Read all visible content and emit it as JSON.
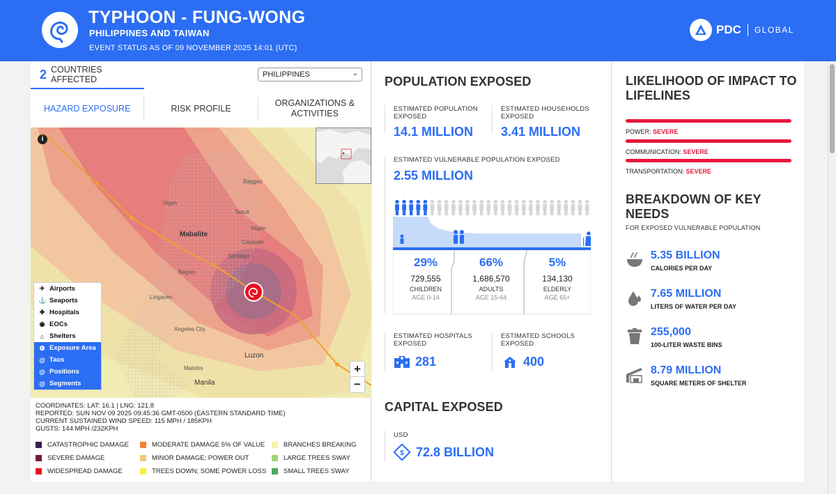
{
  "header": {
    "title": "TYPHOON - FUNG-WONG",
    "subtitle": "PHILIPPINES AND TAIWAN",
    "status": "EVENT STATUS AS OF 09 NOVEMBER 2025 14:01 (UTC)",
    "brand": "PDC",
    "brand_sub": "GLOBAL"
  },
  "left": {
    "countries_count": "2",
    "countries_label": "COUNTRIES AFFECTED",
    "country_select": "PHILIPPINES",
    "tabs": [
      "HAZARD EXPOSURE",
      "RISK PROFILE",
      "ORGANIZATIONS & ACTIVITIES"
    ],
    "map": {
      "place_labels": [
        "Baggao",
        "Vigan",
        "Tabuk",
        "Mabalite",
        "Ilagan",
        "Cauayan",
        "Santiago",
        "Baguio",
        "Lingayen",
        "Angeles City",
        "Malolos",
        "Manila",
        "Luzon"
      ],
      "layers": [
        {
          "label": "Airports",
          "icon": "airplane-icon",
          "selected": false
        },
        {
          "label": "Seaports",
          "icon": "anchor-icon",
          "selected": false
        },
        {
          "label": "Hospitals",
          "icon": "hospital-icon",
          "selected": false
        },
        {
          "label": "EOCs",
          "icon": "eoc-icon",
          "selected": false
        },
        {
          "label": "Shelters",
          "icon": "shelter-icon",
          "selected": false
        },
        {
          "label": "Exposure Area",
          "icon": "exposure-icon",
          "selected": true
        },
        {
          "label": "Taos",
          "icon": "typhoon-icon",
          "selected": true
        },
        {
          "label": "Positions",
          "icon": "typhoon-icon",
          "selected": true
        },
        {
          "label": "Segments",
          "icon": "typhoon-icon",
          "selected": true
        }
      ],
      "zoom_in": "+",
      "zoom_out": "−"
    },
    "coords": "COORDINATES: LAT: 16.1 | LNG: 121.8",
    "reported": "REPORTED: SUN NOV 09 2025 09:45:36 GMT-0500 (EASTERN STANDARD TIME)",
    "wind": "CURRENT SUSTAINED WIND SPEED: 115 MPH / 185KPH",
    "gusts": "GUSTS: 144 MPH /232KPH",
    "damage_legend": [
      {
        "label": "CATASTROPHIC DAMAGE",
        "color": "#3b1f4e"
      },
      {
        "label": "MODERATE DAMAGE 5% OF VALUE",
        "color": "#f2803a"
      },
      {
        "label": "BRANCHES BREAKING",
        "color": "#f7f3a8"
      },
      {
        "label": "SEVERE DAMAGE",
        "color": "#6b2036"
      },
      {
        "label": "MINOR DAMAGE; POWER OUT",
        "color": "#f4c77a"
      },
      {
        "label": "LARGE TREES SWAY",
        "color": "#9fd17a"
      },
      {
        "label": "WIDESPREAD DAMAGE",
        "color": "#e8101f"
      },
      {
        "label": "TREES DOWN; SOME POWER LOSS",
        "color": "#f5f03a"
      },
      {
        "label": "SMALL TREES SWAY",
        "color": "#4ea65a"
      }
    ]
  },
  "population": {
    "title": "POPULATION EXPOSED",
    "est_pop_label": "ESTIMATED POPULATION EXPOSED",
    "est_pop_value": "14.1 MILLION",
    "est_hh_label": "ESTIMATED HOUSEHOLDS EXPOSED",
    "est_hh_value": "3.41 MILLION",
    "vuln_label": "ESTIMATED VULNERABLE POPULATION EXPOSED",
    "vuln_value": "2.55 MILLION",
    "groups": [
      {
        "pct": "29%",
        "count": "729,555",
        "name": "CHILDREN",
        "age": "AGE 0-14"
      },
      {
        "pct": "66%",
        "count": "1,686,570",
        "name": "ADULTS",
        "age": "AGE 15-64"
      },
      {
        "pct": "5%",
        "count": "134,130",
        "name": "ELDERLY",
        "age": "AGE 65+"
      }
    ],
    "hospitals_label": "ESTIMATED HOSPITALS EXPOSED",
    "hospitals_value": "281",
    "schools_label": "ESTIMATED SCHOOLS EXPOSED",
    "schools_value": "400"
  },
  "capital": {
    "title": "CAPITAL EXPOSED",
    "currency": "USD",
    "value": "72.8 BILLION"
  },
  "lifelines": {
    "title": "LIKELIHOOD OF IMPACT TO LIFELINES",
    "items": [
      {
        "label": "POWER:",
        "level": "SEVERE"
      },
      {
        "label": "COMMUNICATION:",
        "level": "SEVERE"
      },
      {
        "label": "TRANSPORTATION:",
        "level": "SEVERE"
      }
    ]
  },
  "needs": {
    "title": "BREAKDOWN OF KEY NEEDS",
    "subtitle": "FOR EXPOSED VULNERABLE POPULATION",
    "items": [
      {
        "value": "5.35 BILLION",
        "desc": "CALORIES PER DAY",
        "icon": "food-bowl-icon"
      },
      {
        "value": "7.65 MILLION",
        "desc": "LITERS OF WATER PER DAY",
        "icon": "water-drop-icon"
      },
      {
        "value": "255,000",
        "desc": "100-LITER WASTE BINS",
        "icon": "trash-bin-icon"
      },
      {
        "value": "8.79 MILLION",
        "desc": "SQUARE METERS OF SHELTER",
        "icon": "shelter-house-icon"
      }
    ]
  },
  "colors": {
    "brand_blue": "#2b6ef3",
    "severe_red": "#e8173a"
  }
}
